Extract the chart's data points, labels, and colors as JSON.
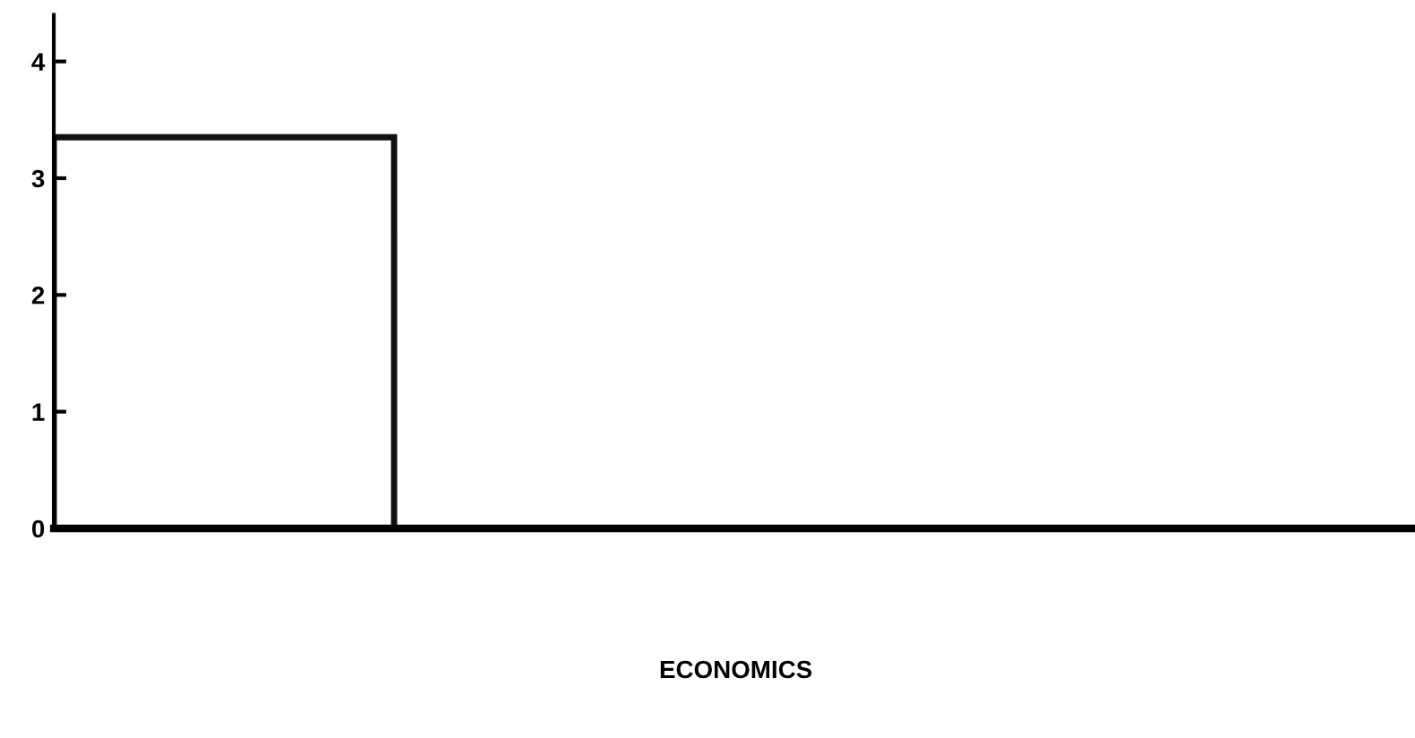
{
  "chart_data": {
    "type": "bar",
    "annotations": [
      "ECONOMICS"
    ],
    "categories": [
      null
    ],
    "values": [
      3.35
    ],
    "color": "#ffffff",
    "ylim": [
      0,
      4.4
    ],
    "yticks": [
      0,
      1,
      2,
      3,
      4
    ],
    "grid": false
  }
}
